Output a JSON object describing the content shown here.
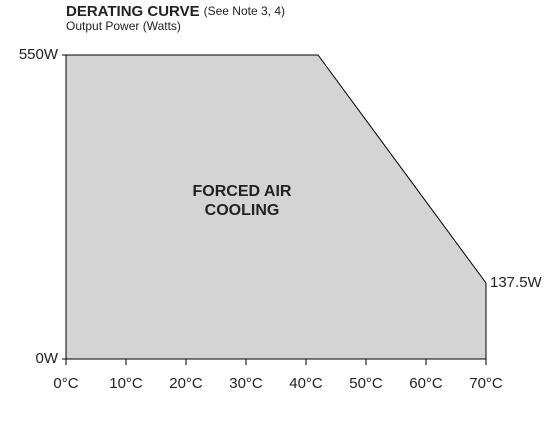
{
  "chart_data": {
    "type": "area",
    "title": "DERATING CURVE",
    "title_note": "(See Note 3, 4)",
    "subtitle": "Output Power (Watts)",
    "area_label": [
      "FORCED AIR",
      "COOLING"
    ],
    "x": [
      0,
      42,
      70
    ],
    "series": [
      {
        "color": "#d4d4d4",
        "values": [
          550,
          550,
          137.5
        ],
        "value_labels": [
          null,
          null,
          "137.5W"
        ]
      }
    ],
    "xlim": [
      0,
      70
    ],
    "xticks": [
      {
        "value": 0,
        "label": "0°C"
      },
      {
        "value": 10,
        "label": "10°C"
      },
      {
        "value": 20,
        "label": "20°C"
      },
      {
        "value": 30,
        "label": "30°C"
      },
      {
        "value": 40,
        "label": "40°C"
      },
      {
        "value": 50,
        "label": "50°C"
      },
      {
        "value": 60,
        "label": "60°C"
      },
      {
        "value": 70,
        "label": "70°C"
      }
    ],
    "ylim": [
      0,
      550
    ],
    "yticks": [
      {
        "value": 0,
        "label": "0W"
      },
      {
        "value": 550,
        "label": "550W"
      }
    ],
    "grid": false
  }
}
